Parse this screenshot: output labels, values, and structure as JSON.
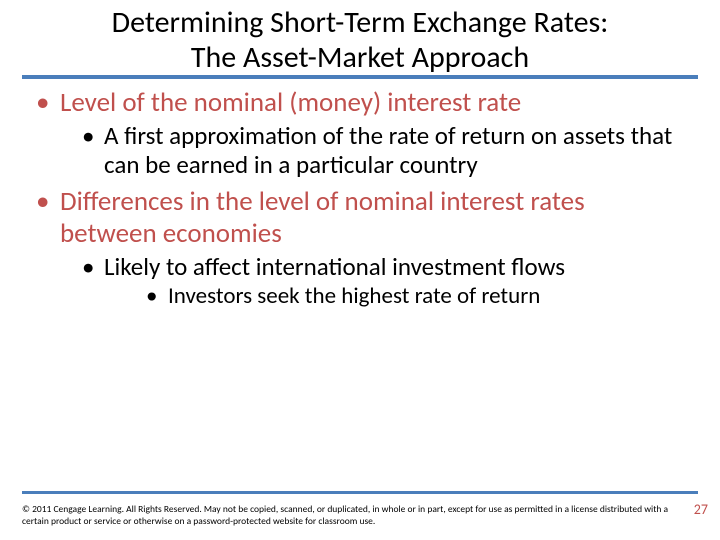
{
  "title": {
    "line1": "Determining Short-Term Exchange Rates:",
    "line2": "The Asset-Market Approach"
  },
  "bullets": {
    "b1": "Level of the nominal (money) interest rate",
    "b1_1": "A first approximation of the rate of return on assets that can be earned in a particular country",
    "b2": "Differences in the level of nominal interest rates between economies",
    "b2_1": "Likely to affect international investment flows",
    "b2_1_1": "Investors seek the highest rate of return"
  },
  "footer": {
    "copyright": "© 2011 Cengage Learning. All Rights Reserved. May not be copied, scanned, or duplicated, in whole or in part, except for use as permitted in a license distributed with a certain product or service or otherwise on a password-protected website for classroom use.",
    "page": "27"
  },
  "colors": {
    "accent_rule": "#4a7ebb",
    "accent_text": "#c0504d",
    "body_text": "#000000",
    "background": "#ffffff"
  }
}
